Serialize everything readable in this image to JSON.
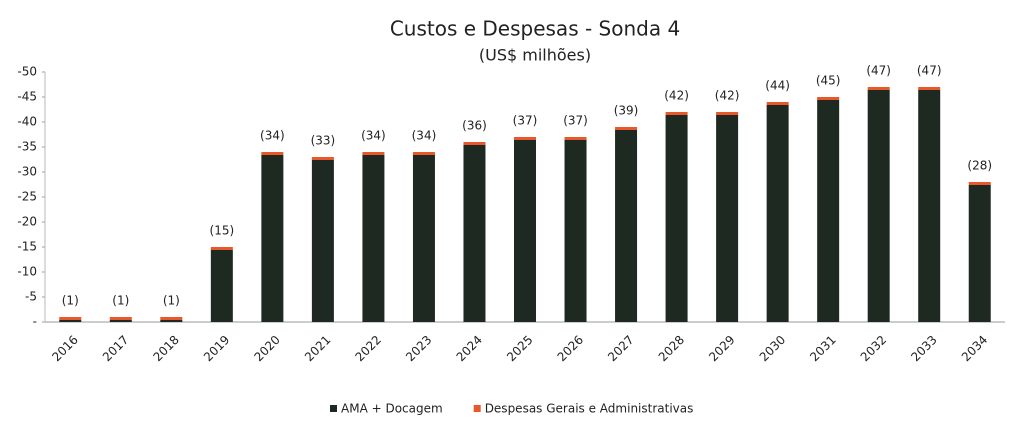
{
  "chart_data": {
    "type": "stacked_bar",
    "title": "Custos e Despesas - Sonda 4",
    "subtitle": "(US$ milhões)",
    "categories": [
      "2016",
      "2017",
      "2018",
      "2019",
      "2020",
      "2021",
      "2022",
      "2023",
      "2024",
      "2025",
      "2026",
      "2027",
      "2028",
      "2029",
      "2030",
      "2031",
      "2032",
      "2033",
      "2034"
    ],
    "series": [
      {
        "name": "AMA + Docagem",
        "color": "#1e2a21",
        "values": [
          -0.4,
          -0.4,
          -0.4,
          -14.4,
          -33.4,
          -32.4,
          -33.4,
          -33.4,
          -35.4,
          -36.4,
          -36.4,
          -38.4,
          -41.4,
          -41.4,
          -43.4,
          -44.4,
          -46.4,
          -46.4,
          -27.4
        ]
      },
      {
        "name": "Despesas Gerais e Administrativas",
        "color": "#e8582a",
        "values": [
          -0.6,
          -0.6,
          -0.6,
          -0.6,
          -0.6,
          -0.6,
          -0.6,
          -0.6,
          -0.6,
          -0.6,
          -0.6,
          -0.6,
          -0.6,
          -0.6,
          -0.6,
          -0.6,
          -0.6,
          -0.6,
          -0.6
        ]
      }
    ],
    "totals": [
      -1,
      -1,
      -1,
      -15,
      -34,
      -33,
      -34,
      -34,
      -36,
      -37,
      -37,
      -39,
      -42,
      -42,
      -44,
      -45,
      -47,
      -47,
      -28
    ],
    "total_labels": [
      "(1)",
      "(1)",
      "(1)",
      "(15)",
      "(34)",
      "(33)",
      "(34)",
      "(34)",
      "(36)",
      "(37)",
      "(37)",
      "(39)",
      "(42)",
      "(42)",
      "(44)",
      "(45)",
      "(47)",
      "(47)",
      "(28)"
    ],
    "ylim": [
      0,
      -50
    ],
    "yticks": [
      {
        "value": 0,
        "label": "-"
      },
      -5,
      -10,
      -15,
      -20,
      -25,
      -30,
      -35,
      -40,
      -45,
      -50
    ],
    "legend": "bottom"
  }
}
